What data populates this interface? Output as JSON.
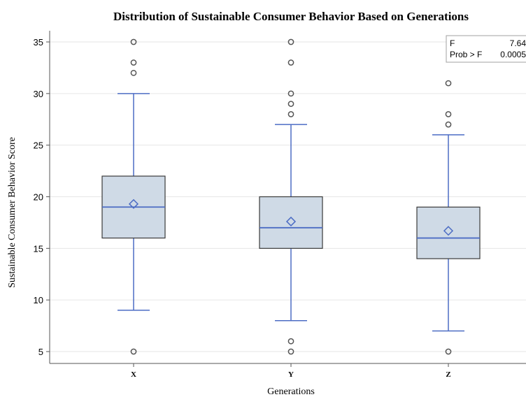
{
  "chart_data": {
    "type": "boxplot",
    "title": "Distribution of Sustainable Consumer Behavior Based on Generations",
    "xlabel": "Generations",
    "ylabel": "Sustainable Consumer Behavior Score",
    "ylim": [
      4,
      36
    ],
    "yticks": [
      5,
      10,
      15,
      20,
      25,
      30,
      35
    ],
    "grid": true,
    "categories": [
      "X",
      "Y",
      "Z"
    ],
    "boxes": [
      {
        "category": "X",
        "whisker_low": 9,
        "q1": 16,
        "median": 19,
        "q3": 22,
        "whisker_high": 30,
        "mean": 19.3,
        "outliers": [
          5,
          32,
          33,
          35
        ]
      },
      {
        "category": "Y",
        "whisker_low": 8,
        "q1": 15,
        "median": 17,
        "q3": 20,
        "whisker_high": 27,
        "mean": 17.6,
        "outliers": [
          5,
          6,
          28,
          29,
          30,
          33,
          35
        ]
      },
      {
        "category": "Z",
        "whisker_low": 7,
        "q1": 14,
        "median": 16,
        "q3": 19,
        "whisker_high": 26,
        "mean": 16.7,
        "outliers": [
          5,
          27,
          28,
          31
        ]
      }
    ],
    "colors": {
      "box_fill": "#cfdae6",
      "box_stroke": "#3a3a3a",
      "line": "#4c6cc4",
      "outlier": "#555555",
      "grid": "#e6e6e6"
    },
    "stats_inset": {
      "f_label": "F",
      "f_value": "7.64",
      "p_label": "Prob > F",
      "p_value": "0.0005"
    }
  }
}
